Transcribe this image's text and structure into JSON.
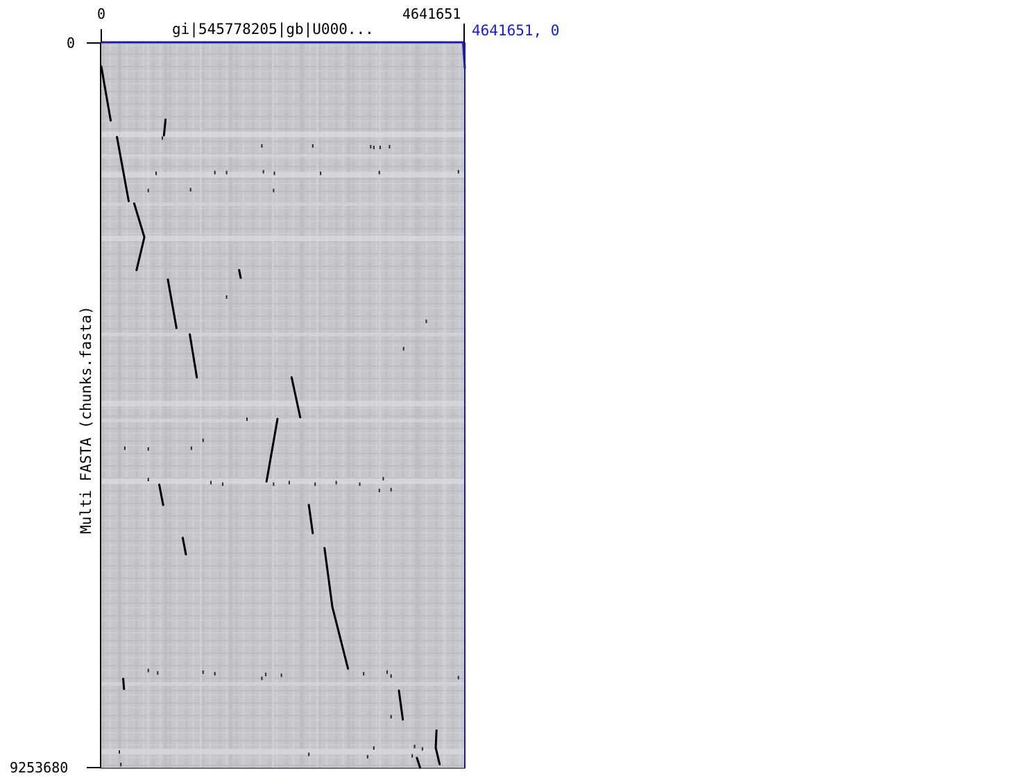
{
  "chart_data": {
    "type": "scatter",
    "title": "gi|545778205|gb|U000...",
    "ylabel": "Multi FASTA (chunks.fasta)",
    "xlim": [
      0,
      4641651
    ],
    "ylim": [
      0,
      9253680
    ],
    "x_tick_labels": [
      "0",
      "4641651"
    ],
    "y_tick_labels": [
      "0",
      "9253680"
    ],
    "cursor_readout": "4641651, 0",
    "grid": false,
    "colors": {
      "background": "#c8c9cc",
      "frame": "#1c1ca8",
      "alignment": "#000000",
      "cursor_text": "#1c1ccc"
    },
    "segments": [
      {
        "x1": 0,
        "y1": 300000,
        "x2": 120000,
        "y2": 990000
      },
      {
        "x1": 200000,
        "y1": 1200000,
        "x2": 350000,
        "y2": 2020000
      },
      {
        "x1": 420000,
        "y1": 2050000,
        "x2": 550000,
        "y2": 2480000
      },
      {
        "x1": 550000,
        "y1": 2480000,
        "x2": 450000,
        "y2": 2900000
      },
      {
        "x1": 820000,
        "y1": 980000,
        "x2": 800000,
        "y2": 1180000
      },
      {
        "x1": 850000,
        "y1": 3020000,
        "x2": 960000,
        "y2": 3640000
      },
      {
        "x1": 1760000,
        "y1": 2900000,
        "x2": 1780000,
        "y2": 3000000
      },
      {
        "x1": 1130000,
        "y1": 3720000,
        "x2": 1220000,
        "y2": 4270000
      },
      {
        "x1": 2430000,
        "y1": 4270000,
        "x2": 2540000,
        "y2": 4780000
      },
      {
        "x1": 2250000,
        "y1": 4800000,
        "x2": 2110000,
        "y2": 5600000
      },
      {
        "x1": 740000,
        "y1": 5640000,
        "x2": 790000,
        "y2": 5900000
      },
      {
        "x1": 2650000,
        "y1": 5900000,
        "x2": 2700000,
        "y2": 6260000
      },
      {
        "x1": 1040000,
        "y1": 6320000,
        "x2": 1080000,
        "y2": 6530000
      },
      {
        "x1": 2850000,
        "y1": 6450000,
        "x2": 2950000,
        "y2": 7200000
      },
      {
        "x1": 2950000,
        "y1": 7200000,
        "x2": 3150000,
        "y2": 7990000
      },
      {
        "x1": 280000,
        "y1": 8120000,
        "x2": 290000,
        "y2": 8250000
      },
      {
        "x1": 3800000,
        "y1": 8270000,
        "x2": 3850000,
        "y2": 8640000
      },
      {
        "x1": 4280000,
        "y1": 8780000,
        "x2": 4270000,
        "y2": 9000000
      },
      {
        "x1": 4270000,
        "y1": 9000000,
        "x2": 4320000,
        "y2": 9210000
      },
      {
        "x1": 4030000,
        "y1": 9130000,
        "x2": 4070000,
        "y2": 9253680
      },
      {
        "x1": 4620000,
        "y1": 0,
        "x2": 4641651,
        "y2": 320000
      }
    ],
    "dots": [
      {
        "x": 780000,
        "y": 1210000
      },
      {
        "x": 2700000,
        "y": 1310000
      },
      {
        "x": 3440000,
        "y": 1320000
      },
      {
        "x": 3480000,
        "y": 1330000
      },
      {
        "x": 3680000,
        "y": 1320000
      },
      {
        "x": 3560000,
        "y": 1330000
      },
      {
        "x": 2050000,
        "y": 1310000
      },
      {
        "x": 700000,
        "y": 1660000
      },
      {
        "x": 1450000,
        "y": 1650000
      },
      {
        "x": 2070000,
        "y": 1640000
      },
      {
        "x": 2210000,
        "y": 1660000
      },
      {
        "x": 2800000,
        "y": 1660000
      },
      {
        "x": 3550000,
        "y": 1650000
      },
      {
        "x": 4560000,
        "y": 1640000
      },
      {
        "x": 1600000,
        "y": 1650000
      },
      {
        "x": 600000,
        "y": 1880000
      },
      {
        "x": 1140000,
        "y": 1870000
      },
      {
        "x": 2200000,
        "y": 1880000
      },
      {
        "x": 1600000,
        "y": 3240000
      },
      {
        "x": 4150000,
        "y": 3550000
      },
      {
        "x": 3860000,
        "y": 3900000
      },
      {
        "x": 1860000,
        "y": 4800000
      },
      {
        "x": 1300000,
        "y": 5070000
      },
      {
        "x": 300000,
        "y": 5170000
      },
      {
        "x": 600000,
        "y": 5180000
      },
      {
        "x": 1150000,
        "y": 5170000
      },
      {
        "x": 1400000,
        "y": 5610000
      },
      {
        "x": 2200000,
        "y": 5630000
      },
      {
        "x": 2400000,
        "y": 5610000
      },
      {
        "x": 3300000,
        "y": 5630000
      },
      {
        "x": 3600000,
        "y": 5560000
      },
      {
        "x": 3700000,
        "y": 5700000
      },
      {
        "x": 600000,
        "y": 5570000
      },
      {
        "x": 1550000,
        "y": 5630000
      },
      {
        "x": 2730000,
        "y": 5630000
      },
      {
        "x": 3000000,
        "y": 5610000
      },
      {
        "x": 3550000,
        "y": 5710000
      },
      {
        "x": 600000,
        "y": 8010000
      },
      {
        "x": 720000,
        "y": 8040000
      },
      {
        "x": 1300000,
        "y": 8030000
      },
      {
        "x": 1450000,
        "y": 8050000
      },
      {
        "x": 2100000,
        "y": 8060000
      },
      {
        "x": 2300000,
        "y": 8070000
      },
      {
        "x": 3350000,
        "y": 8050000
      },
      {
        "x": 3650000,
        "y": 8030000
      },
      {
        "x": 3700000,
        "y": 8080000
      },
      {
        "x": 4560000,
        "y": 8100000
      },
      {
        "x": 2050000,
        "y": 8110000
      },
      {
        "x": 3700000,
        "y": 8600000
      },
      {
        "x": 4000000,
        "y": 8980000
      },
      {
        "x": 4100000,
        "y": 9010000
      },
      {
        "x": 2650000,
        "y": 9080000
      },
      {
        "x": 3400000,
        "y": 9110000
      },
      {
        "x": 230000,
        "y": 9050000
      },
      {
        "x": 250000,
        "y": 9210000
      },
      {
        "x": 3480000,
        "y": 9000000
      },
      {
        "x": 3970000,
        "y": 9100000
      }
    ]
  }
}
